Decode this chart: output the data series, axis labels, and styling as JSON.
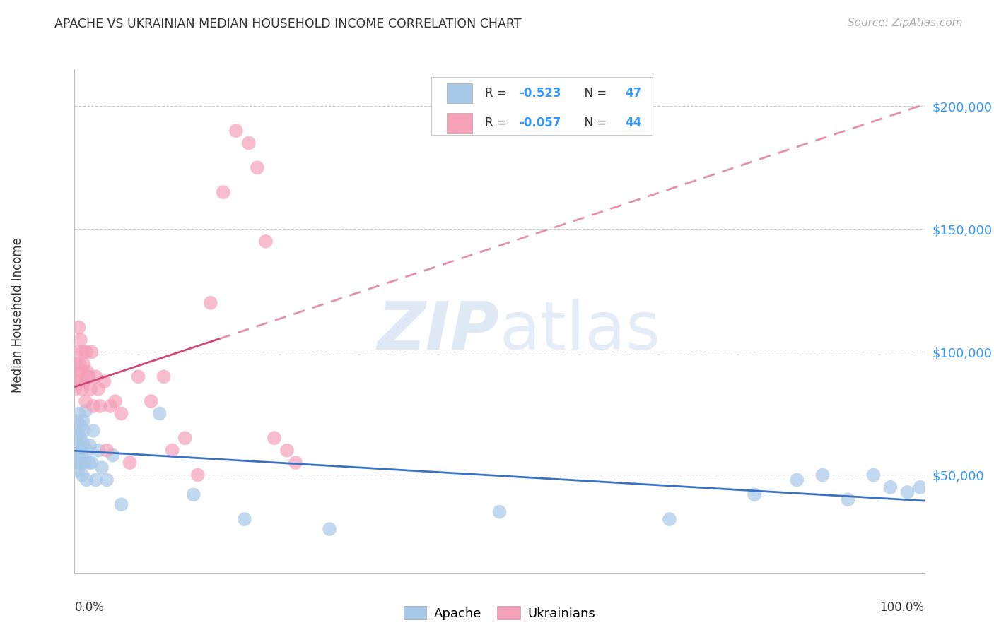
{
  "title": "APACHE VS UKRAINIAN MEDIAN HOUSEHOLD INCOME CORRELATION CHART",
  "source": "Source: ZipAtlas.com",
  "ylabel": "Median Household Income",
  "ytick_labels": [
    "$50,000",
    "$100,000",
    "$150,000",
    "$200,000"
  ],
  "ytick_values": [
    50000,
    100000,
    150000,
    200000
  ],
  "ymin": 10000,
  "ymax": 215000,
  "xmin": 0.0,
  "xmax": 1.0,
  "legend_r_apache": "R = ",
  "legend_rv_apache": "-0.523",
  "legend_n_apache": "N = ",
  "legend_nv_apache": "47",
  "legend_r_ukrainian": "R = ",
  "legend_rv_ukrainian": "-0.057",
  "legend_n_ukrainian": "N = ",
  "legend_nv_ukrainian": "44",
  "apache_color": "#a8c8e8",
  "ukrainian_color": "#f4a0b8",
  "apache_line_color": "#3a72c4",
  "ukrainian_line_color": "#d04878",
  "watermark_zip": "ZIP",
  "watermark_atlas": "atlas",
  "apache_x": [
    0.001,
    0.002,
    0.002,
    0.003,
    0.003,
    0.004,
    0.004,
    0.005,
    0.005,
    0.006,
    0.006,
    0.007,
    0.007,
    0.008,
    0.009,
    0.01,
    0.01,
    0.011,
    0.012,
    0.013,
    0.014,
    0.015,
    0.016,
    0.017,
    0.018,
    0.02,
    0.022,
    0.025,
    0.028,
    0.032,
    0.038,
    0.045,
    0.055,
    0.1,
    0.14,
    0.2,
    0.3,
    0.5,
    0.7,
    0.8,
    0.85,
    0.88,
    0.91,
    0.94,
    0.96,
    0.98,
    0.995
  ],
  "apache_y": [
    68000,
    64000,
    55000,
    72000,
    58000,
    67000,
    52000,
    60000,
    75000,
    62000,
    55000,
    70000,
    65000,
    58000,
    50000,
    63000,
    72000,
    68000,
    55000,
    76000,
    48000,
    60000,
    90000,
    55000,
    62000,
    55000,
    68000,
    48000,
    60000,
    53000,
    48000,
    58000,
    38000,
    75000,
    42000,
    32000,
    28000,
    35000,
    32000,
    42000,
    48000,
    50000,
    40000,
    50000,
    45000,
    43000,
    45000
  ],
  "ukrainian_x": [
    0.001,
    0.002,
    0.003,
    0.003,
    0.004,
    0.005,
    0.006,
    0.007,
    0.008,
    0.009,
    0.01,
    0.011,
    0.012,
    0.013,
    0.014,
    0.015,
    0.017,
    0.019,
    0.02,
    0.022,
    0.025,
    0.028,
    0.03,
    0.035,
    0.038,
    0.042,
    0.048,
    0.055,
    0.065,
    0.075,
    0.09,
    0.105,
    0.115,
    0.13,
    0.145,
    0.16,
    0.175,
    0.19,
    0.205,
    0.215,
    0.225,
    0.235,
    0.25,
    0.26
  ],
  "ukrainian_y": [
    85000,
    95000,
    100000,
    90000,
    88000,
    110000,
    95000,
    105000,
    92000,
    85000,
    100000,
    95000,
    88000,
    80000,
    100000,
    92000,
    90000,
    85000,
    100000,
    78000,
    90000,
    85000,
    78000,
    88000,
    60000,
    78000,
    80000,
    75000,
    55000,
    90000,
    80000,
    90000,
    60000,
    65000,
    50000,
    120000,
    165000,
    190000,
    185000,
    175000,
    145000,
    65000,
    60000,
    55000
  ]
}
